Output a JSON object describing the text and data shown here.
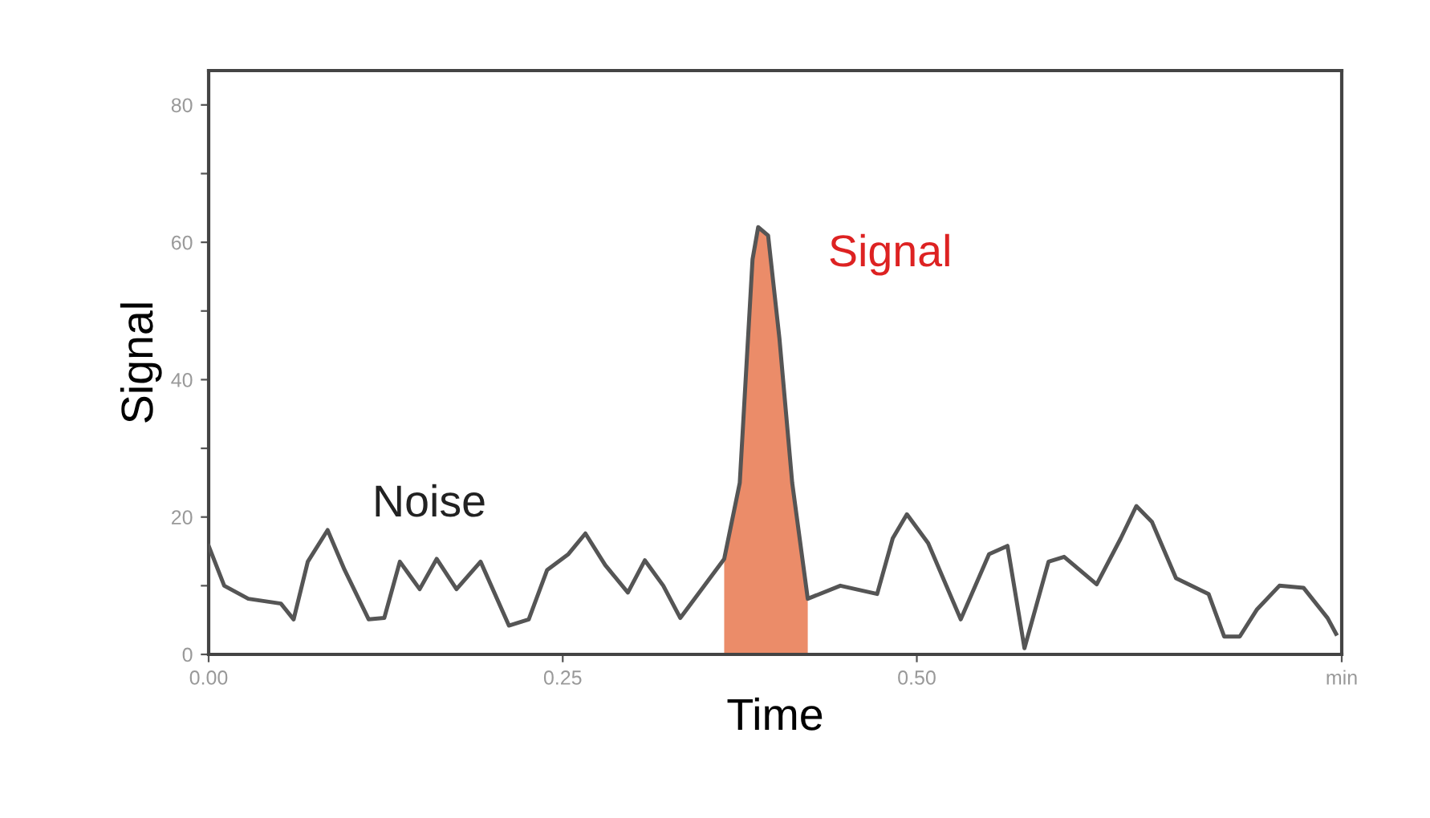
{
  "chart_data": {
    "type": "line",
    "xlabel": "Time",
    "ylabel": "Signal",
    "xlim": [
      0,
      0.8
    ],
    "ylim": [
      0,
      85
    ],
    "xticks": [
      {
        "value": 0,
        "label": "0.00"
      },
      0.25,
      {
        "value": 0.5,
        "label": "0.50"
      },
      {
        "value": 0.8,
        "label": "min"
      }
    ],
    "yticks": [
      0,
      {
        "value": 10,
        "label": null
      },
      20,
      {
        "value": 30,
        "label": null
      },
      40,
      {
        "value": 50,
        "label": null
      },
      60,
      {
        "value": 70,
        "label": null
      },
      80
    ],
    "grid": false,
    "annotations": [
      "Noise",
      "Signal"
    ],
    "series": [
      {
        "type": "area",
        "color": "#e8784f",
        "x": [
          0.364,
          0.375,
          0.384,
          0.388,
          0.395,
          0.403,
          0.412,
          0.423
        ],
        "values": [
          13.9,
          25,
          57.5,
          62.2,
          61,
          46,
          25,
          8.1
        ]
      },
      {
        "color": "#555555",
        "x": [
          0,
          0.011,
          0.028,
          0.051,
          0.06,
          0.07,
          0.084,
          0.096,
          0.113,
          0.124,
          0.135,
          0.149,
          0.161,
          0.175,
          0.192,
          0.212,
          0.226,
          0.239,
          0.254,
          0.266,
          0.28,
          0.296,
          0.308,
          0.321,
          0.333,
          0.35,
          0.364,
          0.375,
          0.384,
          0.388,
          0.395,
          0.403,
          0.412,
          0.423,
          0.446,
          0.472,
          0.483,
          0.493,
          0.508,
          0.531,
          0.551,
          0.564,
          0.576,
          0.593,
          0.604,
          0.627,
          0.644,
          0.655,
          0.666,
          0.683,
          0.706,
          0.717,
          0.728,
          0.74,
          0.756,
          0.773,
          0.79,
          0.796
        ],
        "values": [
          15.8,
          10,
          8.1,
          7.4,
          5.1,
          13.5,
          18.1,
          12.3,
          5.1,
          5.3,
          13.5,
          9.5,
          13.9,
          9.5,
          13.5,
          4.2,
          5.1,
          12.3,
          14.6,
          17.6,
          13,
          9,
          13.7,
          10,
          5.3,
          10,
          13.9,
          25,
          57.5,
          62.2,
          61,
          46,
          25,
          8.1,
          10,
          8.8,
          16.9,
          20.4,
          16.2,
          5.1,
          14.6,
          15.8,
          0.9,
          13.5,
          14.2,
          10.2,
          16.9,
          21.6,
          19.3,
          11.1,
          8.8,
          2.6,
          2.6,
          6.5,
          10,
          9.7,
          5.3,
          3
        ]
      }
    ]
  }
}
